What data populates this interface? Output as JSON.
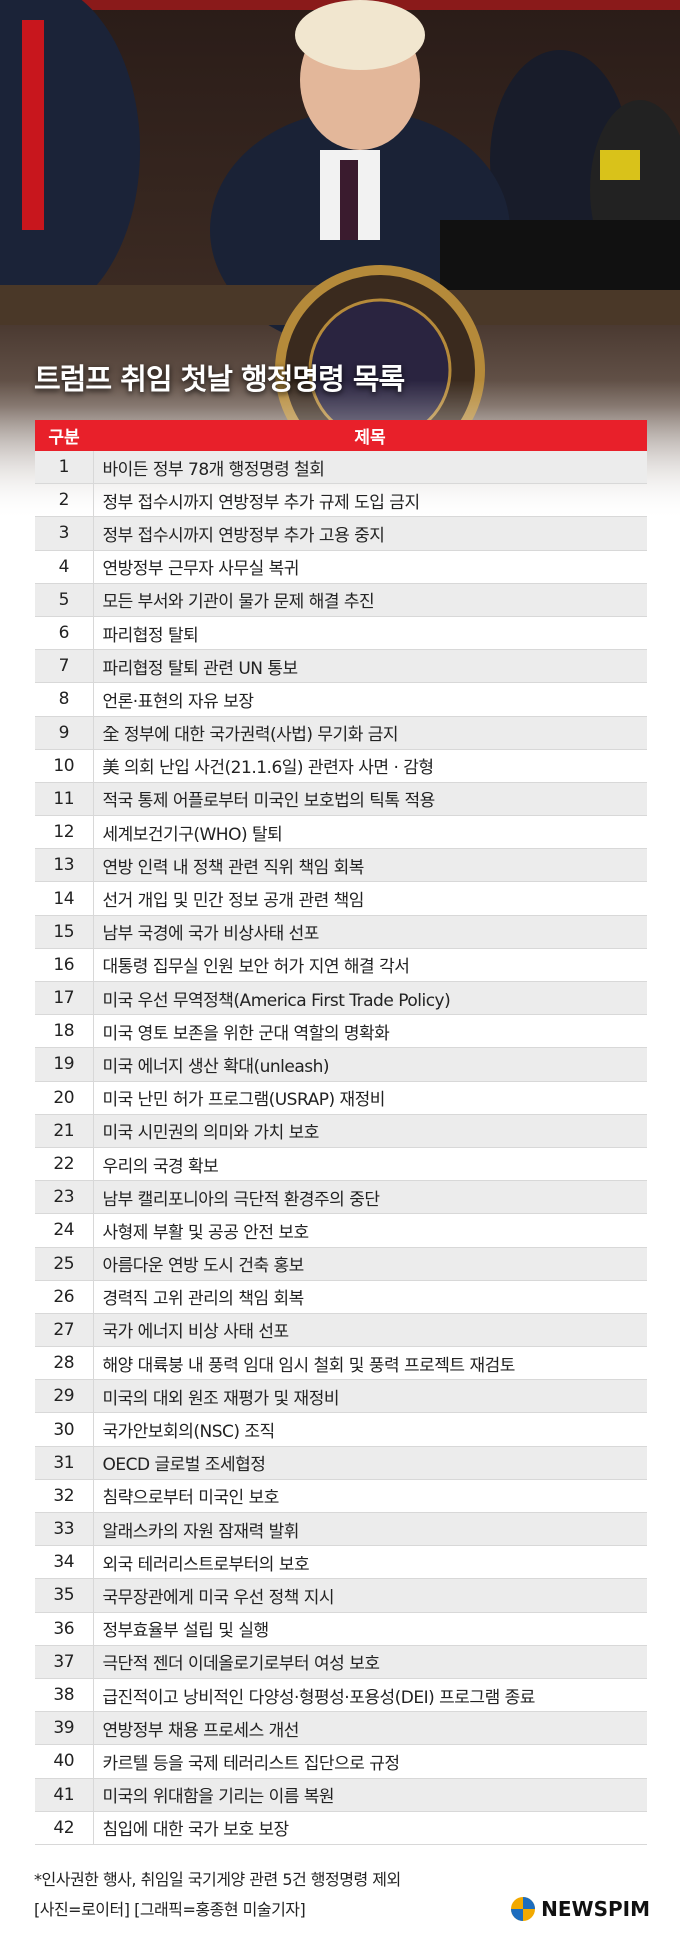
{
  "header": {
    "title": "트럼프 취임 첫날 행정명령 목록"
  },
  "table": {
    "columns": [
      "구분",
      "제목"
    ],
    "rows": [
      [
        1,
        "바이든 정부 78개 행정명령 철회"
      ],
      [
        2,
        "정부 접수시까지 연방정부 추가 규제 도입 금지"
      ],
      [
        3,
        "정부 접수시까지 연방정부 추가 고용 중지"
      ],
      [
        4,
        "연방정부 근무자 사무실 복귀"
      ],
      [
        5,
        "모든 부서와 기관이 물가 문제 해결 추진"
      ],
      [
        6,
        "파리협정 탈퇴"
      ],
      [
        7,
        "파리협정 탈퇴 관련 UN 통보"
      ],
      [
        8,
        "언론·표현의 자유 보장"
      ],
      [
        9,
        "全 정부에 대한 국가권력(사법) 무기화 금지"
      ],
      [
        10,
        "美 의회 난입 사건(21.1.6일) 관련자 사면 · 감형"
      ],
      [
        11,
        "적국 통제 어플로부터 미국인 보호법의 틱톡 적용"
      ],
      [
        12,
        "세계보건기구(WHO) 탈퇴"
      ],
      [
        13,
        "연방 인력 내 정책 관련 직위 책임 회복"
      ],
      [
        14,
        "선거 개입 및 민간 정보 공개 관련 책임"
      ],
      [
        15,
        "남부 국경에 국가 비상사태 선포"
      ],
      [
        16,
        "대통령 집무실 인원 보안 허가 지연 해결 각서"
      ],
      [
        17,
        "미국 우선 무역정책(America First Trade Policy)"
      ],
      [
        18,
        "미국 영토 보존을 위한 군대 역할의 명확화"
      ],
      [
        19,
        "미국 에너지 생산 확대(unleash)"
      ],
      [
        20,
        "미국 난민 허가 프로그램(USRAP) 재정비"
      ],
      [
        21,
        "미국 시민권의 의미와 가치 보호"
      ],
      [
        22,
        "우리의 국경 확보"
      ],
      [
        23,
        "남부 캘리포니아의 극단적 환경주의 중단"
      ],
      [
        24,
        "사형제 부활 및 공공 안전 보호"
      ],
      [
        25,
        "아름다운 연방 도시 건축 홍보"
      ],
      [
        26,
        "경력직 고위 관리의 책임 회복"
      ],
      [
        27,
        "국가 에너지 비상 사태 선포"
      ],
      [
        28,
        "해양 대륙붕 내 풍력 임대 임시 철회 및 풍력 프로젝트 재검토"
      ],
      [
        29,
        "미국의 대외 원조 재평가 및 재정비"
      ],
      [
        30,
        "국가안보회의(NSC) 조직"
      ],
      [
        31,
        "OECD 글로벌 조세협정"
      ],
      [
        32,
        "침략으로부터 미국인 보호"
      ],
      [
        33,
        "알래스카의 자원 잠재력 발휘"
      ],
      [
        34,
        "외국 테러리스트로부터의 보호"
      ],
      [
        35,
        "국무장관에게 미국 우선 정책 지시"
      ],
      [
        36,
        "정부효율부 설립 및 실행"
      ],
      [
        37,
        "극단적 젠더 이데올로기로부터 여성 보호"
      ],
      [
        38,
        "급진적이고 낭비적인 다양성·형평성·포용성(DEI) 프로그램 종료"
      ],
      [
        39,
        "연방정부 채용 프로세스 개선"
      ],
      [
        40,
        "카르텔 등을 국제 테러리스트 집단으로 규정"
      ],
      [
        41,
        "미국의 위대함을 기리는 이름 복원"
      ],
      [
        42,
        "침입에 대한 국가 보호 보장"
      ]
    ]
  },
  "footer": {
    "note": "*인사권한 행사, 취임일 국기게양 관련 5건 행정명령 제외",
    "credit": "[사진=로이터] [그래픽=홍종현 미술기자]",
    "logo": "NEWSPIM"
  }
}
